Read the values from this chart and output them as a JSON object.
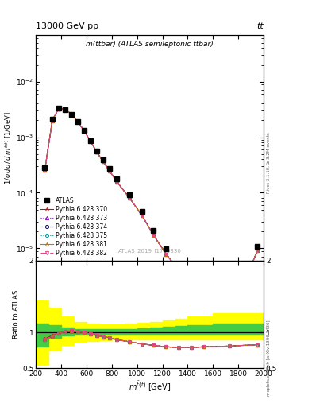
{
  "title_top": "13000 GeV pp",
  "title_right": "tt",
  "plot_title": "m(ttbar) (ATLAS semileptonic ttbar)",
  "watermark": "ATLAS_2019_I1750330",
  "right_label_top": "Rivet 3.1.10, ≥ 3.2M events",
  "right_label_bot": "mcplots.cern.ch [arXiv:1306.3436]",
  "ylabel_main": "1/σ dσ / d m^{tbar(t)} [1/GeV]",
  "ylabel_ratio": "Ratio to ATLAS",
  "xlabel": "m^{tbar(t)} [GeV]",
  "xlim": [
    200,
    2000
  ],
  "ylim_main_log": [
    6e-06,
    0.07
  ],
  "ylim_ratio": [
    0.5,
    2.0
  ],
  "x_data": [
    270,
    330,
    380,
    430,
    480,
    530,
    580,
    630,
    680,
    730,
    780,
    840,
    940,
    1040,
    1130,
    1230,
    1330,
    1430,
    1530,
    1730,
    1950
  ],
  "atlas_y": [
    0.00028,
    0.0021,
    0.0033,
    0.00315,
    0.00255,
    0.00188,
    0.00132,
    0.00087,
    0.00057,
    0.00039,
    0.00027,
    0.000175,
    9.3e-05,
    4.6e-05,
    2.1e-05,
    9.8e-06,
    5.1e-06,
    2.9e-06,
    1.55e-06,
    6.2e-07,
    1.1e-05
  ],
  "lines": [
    {
      "label": "Pythia 6.428 370",
      "color": "#dd0000",
      "linestyle": "-",
      "marker": "^",
      "markersize": 3,
      "markerfacecolor": "none",
      "ratio": [
        0.91,
        0.96,
        0.99,
        1.01,
        1.02,
        1.01,
        1.0,
        0.98,
        0.96,
        0.94,
        0.93,
        0.9,
        0.87,
        0.84,
        0.82,
        0.8,
        0.79,
        0.79,
        0.8,
        0.81,
        0.83
      ]
    },
    {
      "label": "Pythia 6.428 373",
      "color": "#8800cc",
      "linestyle": ":",
      "marker": "^",
      "markersize": 3,
      "markerfacecolor": "none",
      "ratio": [
        0.9,
        0.95,
        0.99,
        1.01,
        1.02,
        1.01,
        1.0,
        0.98,
        0.96,
        0.94,
        0.93,
        0.9,
        0.87,
        0.84,
        0.82,
        0.8,
        0.79,
        0.79,
        0.8,
        0.81,
        0.83
      ]
    },
    {
      "label": "Pythia 6.428 374",
      "color": "#0000bb",
      "linestyle": "--",
      "marker": "o",
      "markersize": 3,
      "markerfacecolor": "none",
      "ratio": [
        0.9,
        0.95,
        0.99,
        1.01,
        1.02,
        1.01,
        1.0,
        0.98,
        0.96,
        0.94,
        0.93,
        0.9,
        0.87,
        0.84,
        0.82,
        0.8,
        0.79,
        0.79,
        0.8,
        0.81,
        0.83
      ]
    },
    {
      "label": "Pythia 6.428 375",
      "color": "#009999",
      "linestyle": ":",
      "marker": "o",
      "markersize": 3,
      "markerfacecolor": "none",
      "ratio": [
        0.9,
        0.95,
        0.99,
        1.01,
        1.02,
        1.01,
        1.0,
        0.98,
        0.96,
        0.94,
        0.93,
        0.9,
        0.87,
        0.84,
        0.82,
        0.8,
        0.79,
        0.79,
        0.8,
        0.81,
        0.83
      ]
    },
    {
      "label": "Pythia 6.428 381",
      "color": "#bb7700",
      "linestyle": "-",
      "marker": "^",
      "markersize": 3,
      "markerfacecolor": "none",
      "ratio": [
        0.9,
        0.95,
        0.99,
        1.01,
        1.02,
        1.01,
        1.0,
        0.98,
        0.96,
        0.94,
        0.93,
        0.9,
        0.87,
        0.84,
        0.82,
        0.8,
        0.79,
        0.79,
        0.8,
        0.81,
        0.83
      ]
    },
    {
      "label": "Pythia 6.428 382",
      "color": "#ee4488",
      "linestyle": "-.",
      "marker": "v",
      "markersize": 3,
      "markerfacecolor": "none",
      "ratio": [
        0.9,
        0.95,
        0.99,
        1.01,
        1.02,
        1.01,
        1.0,
        0.98,
        0.96,
        0.94,
        0.93,
        0.9,
        0.87,
        0.84,
        0.82,
        0.8,
        0.79,
        0.79,
        0.8,
        0.81,
        0.83
      ]
    }
  ],
  "band_x_edges": [
    200,
    300,
    400,
    500,
    600,
    700,
    800,
    900,
    1000,
    1100,
    1200,
    1300,
    1400,
    1600,
    2000
  ],
  "band_green_lo": [
    0.8,
    0.93,
    0.96,
    0.97,
    0.97,
    0.97,
    0.97,
    0.97,
    0.97,
    0.97,
    0.97,
    0.97,
    0.97,
    0.97,
    0.97
  ],
  "band_green_hi": [
    1.12,
    1.1,
    1.07,
    1.05,
    1.05,
    1.05,
    1.05,
    1.05,
    1.06,
    1.07,
    1.08,
    1.09,
    1.1,
    1.12,
    1.15
  ],
  "band_yellow_lo": [
    0.55,
    0.75,
    0.83,
    0.87,
    0.88,
    0.89,
    0.9,
    0.9,
    0.9,
    0.9,
    0.9,
    0.9,
    0.9,
    0.9,
    0.9
  ],
  "band_yellow_hi": [
    1.45,
    1.35,
    1.22,
    1.15,
    1.12,
    1.11,
    1.11,
    1.12,
    1.13,
    1.15,
    1.17,
    1.19,
    1.22,
    1.27,
    1.35
  ]
}
